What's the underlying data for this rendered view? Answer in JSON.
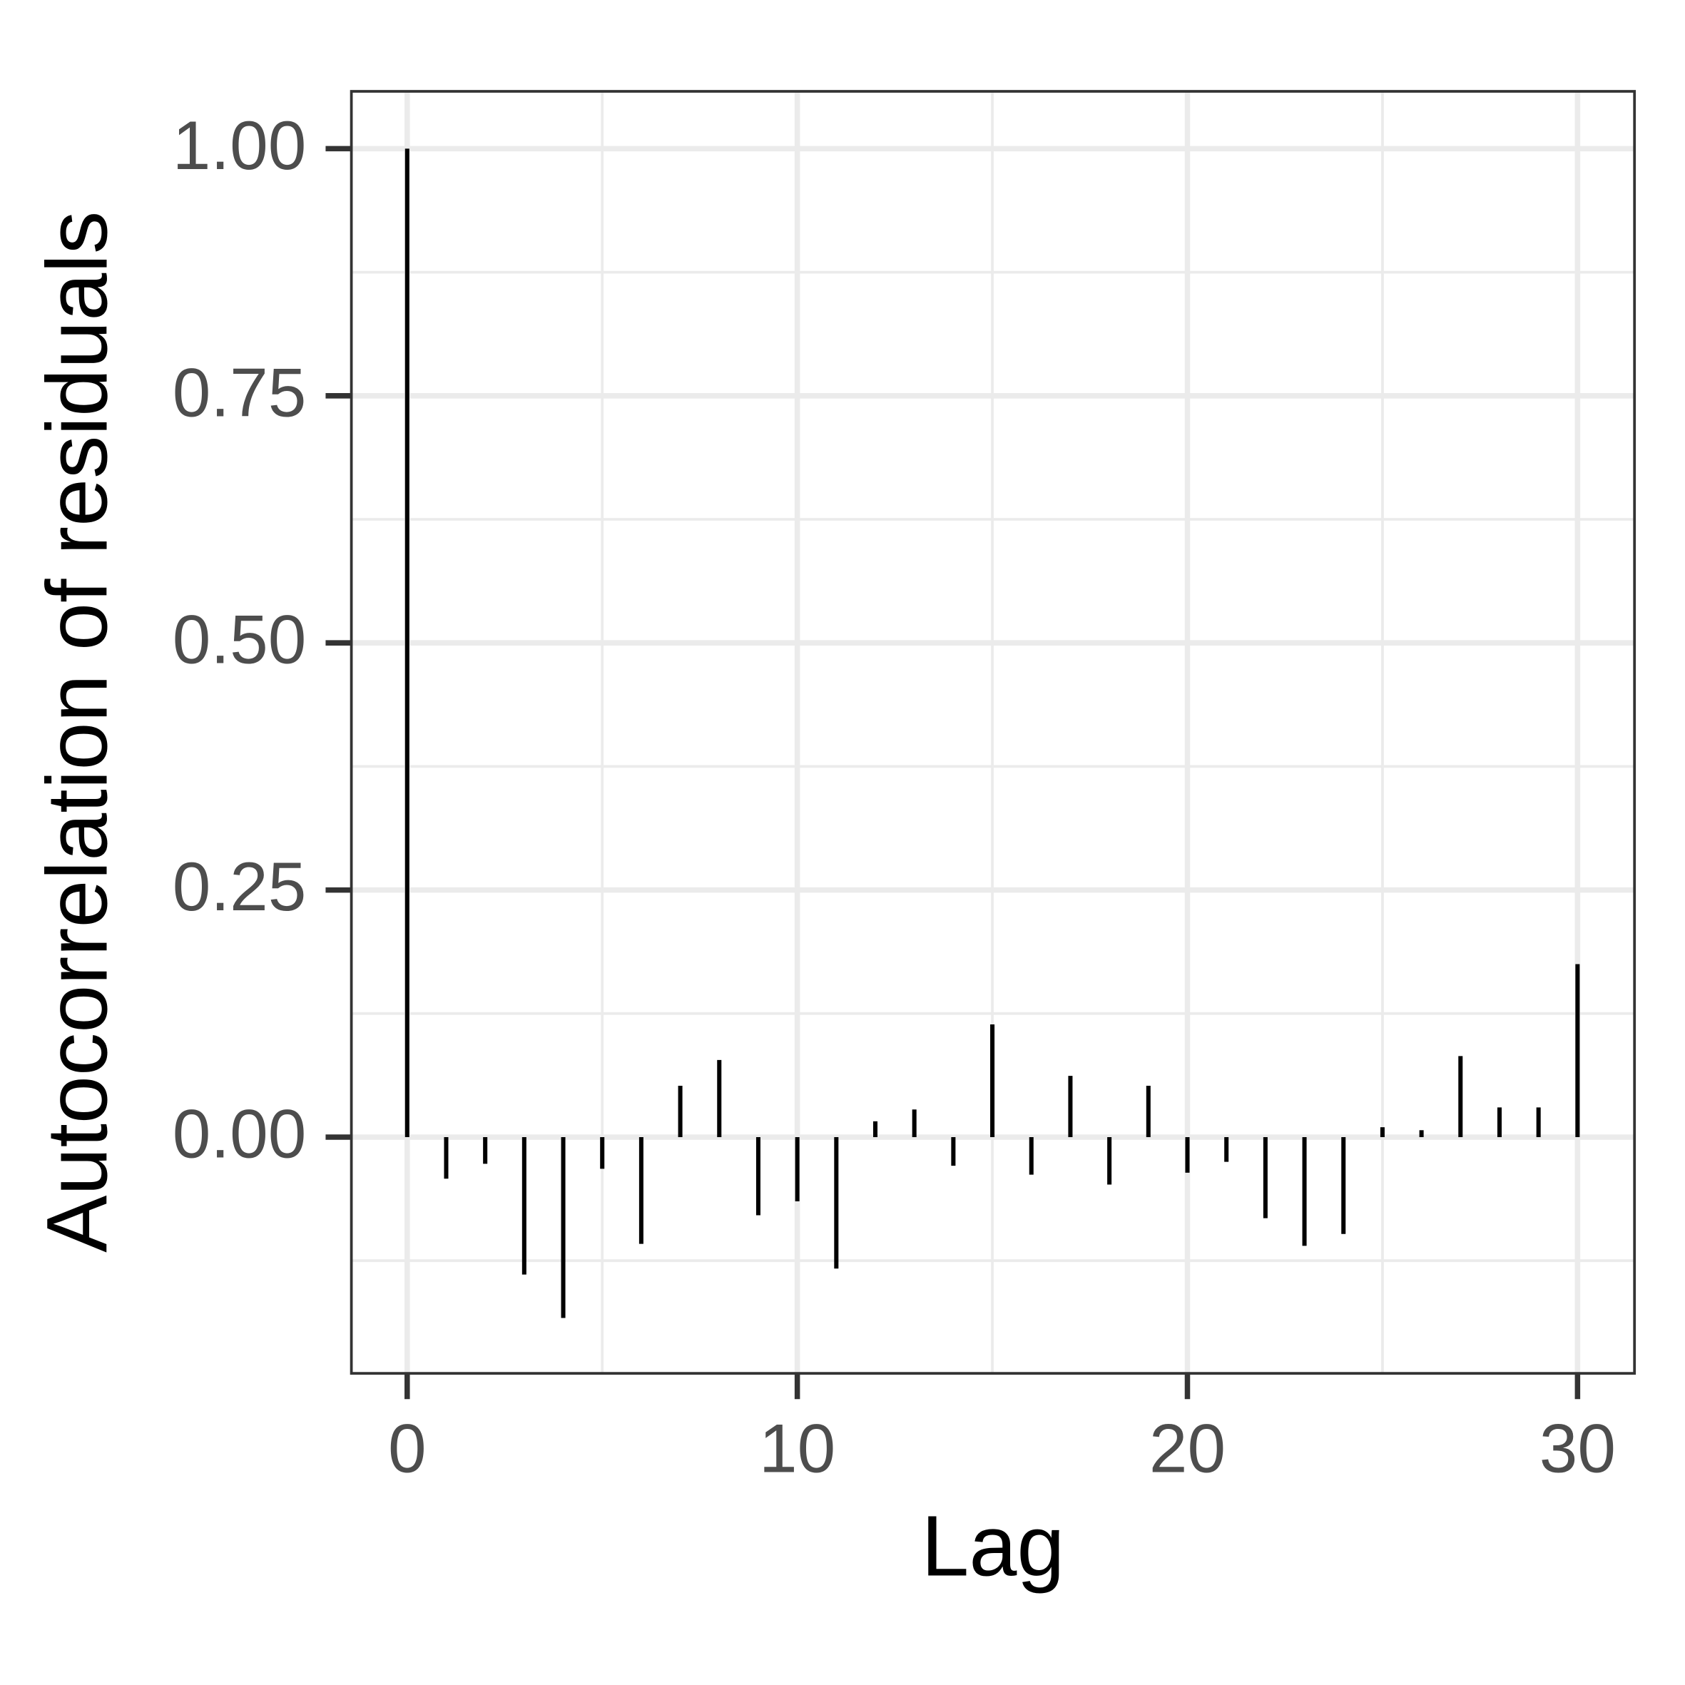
{
  "chart_data": {
    "type": "bar",
    "x_label": "Lag",
    "y_label": "Autocorrelation of residuals",
    "x": [
      0,
      1,
      2,
      3,
      4,
      5,
      6,
      7,
      8,
      9,
      10,
      11,
      12,
      13,
      14,
      15,
      16,
      17,
      18,
      19,
      20,
      21,
      22,
      23,
      24,
      25,
      26,
      27,
      28,
      29,
      30
    ],
    "values": [
      1.0,
      -0.042,
      -0.027,
      -0.139,
      -0.183,
      -0.032,
      -0.108,
      0.052,
      0.078,
      -0.079,
      -0.065,
      -0.133,
      0.016,
      0.028,
      -0.029,
      0.114,
      -0.038,
      0.062,
      -0.048,
      0.052,
      -0.036,
      -0.025,
      -0.082,
      -0.11,
      -0.098,
      0.01,
      0.007,
      0.082,
      0.03,
      0.03,
      0.175
    ],
    "color": "#000000",
    "xlim": [
      -1.43,
      31.46
    ],
    "ylim": [
      -0.239,
      1.058
    ],
    "xticks": [
      0,
      10,
      20,
      30
    ],
    "yticks": [
      {
        "value": 0,
        "label": "0.00"
      },
      {
        "value": 0.25,
        "label": "0.25"
      },
      {
        "value": 0.5,
        "label": "0.50"
      },
      {
        "value": 0.75,
        "label": "0.75"
      },
      {
        "value": 1,
        "label": "1.00"
      }
    ],
    "grid": true
  }
}
